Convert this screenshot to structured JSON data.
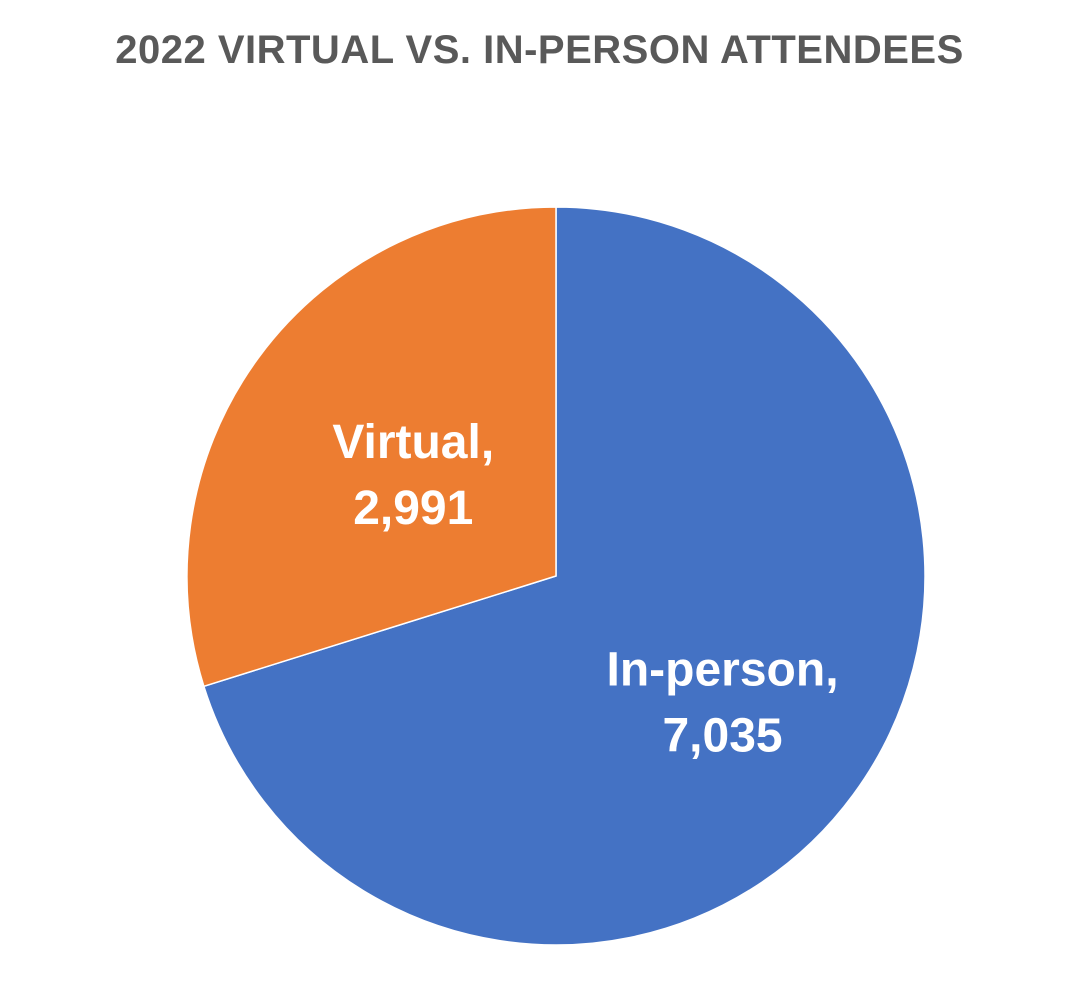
{
  "chart_data": {
    "type": "pie",
    "title": "2022 VIRTUAL VS. IN-PERSON ATTENDEES",
    "slices": [
      {
        "name": "In-person",
        "value": 7035,
        "value_label": "7,035",
        "label_line1": "In-person,",
        "color": "#4472C4"
      },
      {
        "name": "Virtual",
        "value": 2991,
        "value_label": "2,991",
        "label_line1": "Virtual,",
        "color": "#ED7D31"
      }
    ],
    "start_angle": "12 o'clock",
    "direction": "clockwise",
    "legend": "none",
    "data_labels": "inside"
  }
}
